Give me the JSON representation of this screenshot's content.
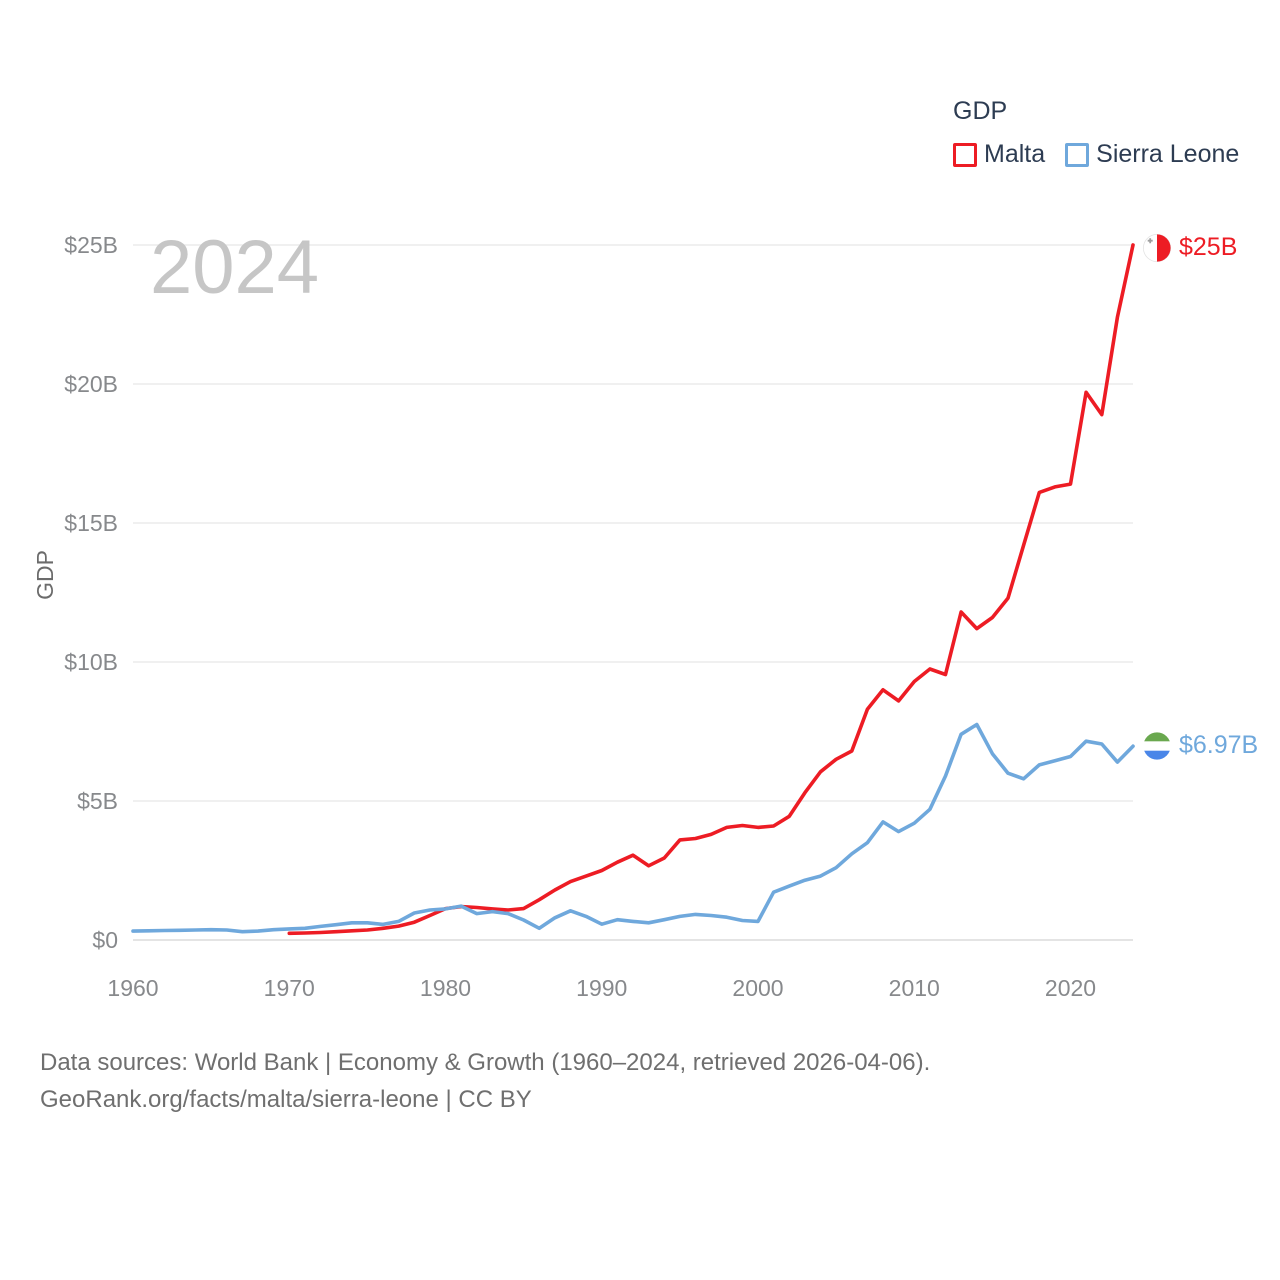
{
  "watermark": "2024",
  "colors": {
    "malta_red": "#ed1c24",
    "sierra_leone_blue": "#6fa8dc",
    "flag_red": "#ed1c24",
    "flag_white": "#ffffff",
    "flag_green": "#6aa84f",
    "flag_blue": "#4a86e8",
    "legend_text": "#2d3c52",
    "axis_tick_text": "#87898c",
    "axis_title_text": "#6b6b6b",
    "gridline": "#ebebeb",
    "axis_line": "#dcdcdc",
    "watermark_text": "#c6c6c6",
    "footer_text": "#6f6f6f",
    "background": "#ffffff"
  },
  "chart_data": {
    "type": "line",
    "title": "GDP",
    "ylabel": "GDP",
    "xlim": [
      1960,
      2024
    ],
    "ylim": [
      0,
      25
    ],
    "grid": true,
    "legend_position": "top-right",
    "x_ticks": [
      1960,
      1970,
      1980,
      1990,
      2000,
      2010,
      2020
    ],
    "x_tick_labels": [
      "1960",
      "1970",
      "1980",
      "1990",
      "2000",
      "2010",
      "2020"
    ],
    "y_ticks": [
      {
        "value": 0,
        "label": "$0"
      },
      {
        "value": 5,
        "label": "$5B"
      },
      {
        "value": 10,
        "label": "$10B"
      },
      {
        "value": 15,
        "label": "$15B"
      },
      {
        "value": 20,
        "label": "$20B"
      },
      {
        "value": 25,
        "label": "$25B"
      }
    ],
    "units": "billions of current US dollars",
    "series": [
      {
        "id": "malta",
        "name": "Malta",
        "color": "#ed1c24",
        "start_year": 1970,
        "end_year": 2024,
        "end_label": "$25B",
        "values": [
          0.24,
          0.25,
          0.27,
          0.3,
          0.33,
          0.36,
          0.42,
          0.5,
          0.64,
          0.88,
          1.13,
          1.2,
          1.17,
          1.12,
          1.08,
          1.13,
          1.45,
          1.8,
          2.1,
          2.3,
          2.5,
          2.8,
          3.05,
          2.67,
          2.95,
          3.6,
          3.65,
          3.8,
          4.05,
          4.12,
          4.05,
          4.1,
          4.45,
          5.3,
          6.05,
          6.5,
          6.8,
          8.3,
          9.0,
          8.6,
          9.3,
          9.75,
          9.55,
          11.8,
          11.2,
          11.6,
          12.3,
          14.2,
          16.1,
          16.3,
          16.4,
          19.7,
          18.9,
          22.4,
          25.0
        ]
      },
      {
        "id": "sierra-leone",
        "name": "Sierra Leone",
        "color": "#6fa8dc",
        "start_year": 1960,
        "end_year": 2024,
        "end_label": "$6.97B",
        "values": [
          0.32,
          0.33,
          0.34,
          0.35,
          0.36,
          0.37,
          0.36,
          0.3,
          0.32,
          0.37,
          0.4,
          0.42,
          0.49,
          0.55,
          0.62,
          0.62,
          0.56,
          0.67,
          0.97,
          1.08,
          1.12,
          1.22,
          0.95,
          1.02,
          0.95,
          0.72,
          0.42,
          0.8,
          1.05,
          0.85,
          0.57,
          0.73,
          0.67,
          0.62,
          0.73,
          0.85,
          0.92,
          0.88,
          0.82,
          0.7,
          0.67,
          1.72,
          1.94,
          2.15,
          2.3,
          2.6,
          3.1,
          3.5,
          4.25,
          3.9,
          4.2,
          4.7,
          5.9,
          7.4,
          7.75,
          6.7,
          6.0,
          5.8,
          6.3,
          6.45,
          6.6,
          7.15,
          7.05,
          6.4,
          6.97
        ]
      }
    ]
  },
  "footer": {
    "line1": "Data sources: World Bank | Economy & Growth (1960–2024, retrieved 2026-04-06).",
    "line2": "GeoRank.org/facts/malta/sierra-leone | CC BY"
  }
}
